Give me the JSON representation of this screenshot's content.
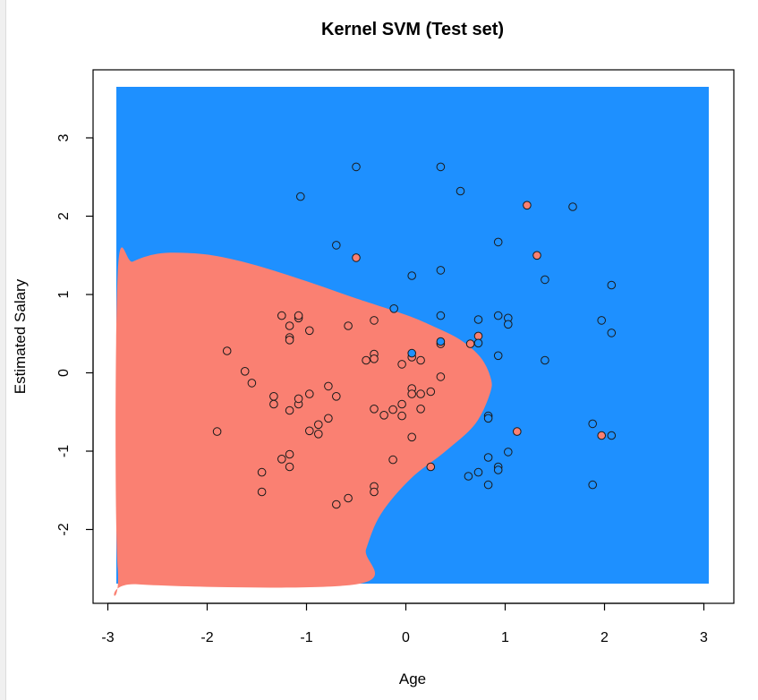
{
  "chart_data": {
    "type": "scatter",
    "title": "Kernel SVM (Test set)",
    "xlabel": "Age",
    "ylabel": "Estimated Salary",
    "xlim": [
      -3,
      3
    ],
    "ylim": [
      -3,
      3.7
    ],
    "x_ticks": [
      "-3",
      "-2",
      "-1",
      "0",
      "1",
      "2",
      "3"
    ],
    "y_ticks": [
      "-2",
      "-1",
      "0",
      "1",
      "2",
      "3"
    ],
    "grid": false,
    "region_colors": {
      "class_0": "#fa8072",
      "class_1": "#1e90ff"
    },
    "decision_region_class_0_boundary": [
      [
        -2.9,
        1.28
      ],
      [
        -2.75,
        1.42
      ],
      [
        -2.5,
        1.52
      ],
      [
        -2.2,
        1.53
      ],
      [
        -1.9,
        1.49
      ],
      [
        -1.5,
        1.37
      ],
      [
        -1.0,
        1.17
      ],
      [
        -0.5,
        0.95
      ],
      [
        0.0,
        0.74
      ],
      [
        0.3,
        0.58
      ],
      [
        0.55,
        0.42
      ],
      [
        0.75,
        0.2
      ],
      [
        0.85,
        -0.05
      ],
      [
        0.85,
        -0.25
      ],
      [
        0.7,
        -0.65
      ],
      [
        0.4,
        -1.0
      ],
      [
        0.05,
        -1.35
      ],
      [
        -0.25,
        -1.8
      ],
      [
        -0.4,
        -2.25
      ],
      [
        -0.5,
        -2.7
      ],
      [
        -2.7,
        -2.7
      ],
      [
        -2.9,
        -2.5
      ]
    ],
    "series": [
      {
        "class": 0,
        "point_color": "#fa8072",
        "points": [
          [
            -1.9,
            -0.75
          ],
          [
            -1.8,
            0.28
          ],
          [
            -1.62,
            0.02
          ],
          [
            -1.55,
            -0.13
          ],
          [
            -1.45,
            -1.27
          ],
          [
            -1.45,
            -1.52
          ],
          [
            -1.33,
            -0.3
          ],
          [
            -1.33,
            -0.4
          ],
          [
            -1.25,
            0.73
          ],
          [
            -1.25,
            -1.1
          ],
          [
            -1.17,
            0.6
          ],
          [
            -1.17,
            0.45
          ],
          [
            -1.17,
            0.42
          ],
          [
            -1.17,
            -0.48
          ],
          [
            -1.17,
            -1.04
          ],
          [
            -1.17,
            -1.2
          ],
          [
            -1.08,
            0.7
          ],
          [
            -1.08,
            0.73
          ],
          [
            -1.08,
            -0.4
          ],
          [
            -1.08,
            -0.33
          ],
          [
            -0.97,
            0.54
          ],
          [
            -0.97,
            -0.27
          ],
          [
            -0.97,
            -0.74
          ],
          [
            -0.88,
            -0.78
          ],
          [
            -0.88,
            -0.66
          ],
          [
            -0.78,
            -0.17
          ],
          [
            -0.78,
            -0.58
          ],
          [
            -0.7,
            -0.3
          ],
          [
            -0.7,
            -1.68
          ],
          [
            -0.58,
            0.6
          ],
          [
            -0.58,
            -1.6
          ],
          [
            -0.4,
            0.16
          ],
          [
            -0.32,
            0.67
          ],
          [
            -0.32,
            0.24
          ],
          [
            -0.32,
            0.18
          ],
          [
            -0.32,
            -0.46
          ],
          [
            -0.32,
            -1.45
          ],
          [
            -0.32,
            -1.52
          ],
          [
            -0.22,
            -0.54
          ],
          [
            -0.13,
            -0.47
          ],
          [
            -0.13,
            -1.11
          ],
          [
            -0.04,
            0.11
          ],
          [
            -0.04,
            -0.4
          ],
          [
            -0.04,
            -0.55
          ],
          [
            0.06,
            0.2
          ],
          [
            0.06,
            -0.2
          ],
          [
            0.06,
            -0.27
          ],
          [
            0.06,
            -0.82
          ],
          [
            0.15,
            0.16
          ],
          [
            0.15,
            -0.27
          ],
          [
            0.15,
            -0.46
          ],
          [
            0.25,
            -0.24
          ],
          [
            0.25,
            -1.2
          ],
          [
            0.35,
            0.37
          ],
          [
            0.35,
            -0.05
          ],
          [
            0.65,
            0.37
          ],
          [
            0.73,
            0.47
          ],
          [
            -0.5,
            1.47
          ],
          [
            1.12,
            -0.75
          ],
          [
            1.22,
            2.14
          ],
          [
            1.32,
            1.5
          ],
          [
            1.97,
            -0.8
          ]
        ]
      },
      {
        "class": 1,
        "point_color": "#1e90ff",
        "points": [
          [
            -1.06,
            2.25
          ],
          [
            -0.7,
            1.63
          ],
          [
            -0.5,
            2.63
          ],
          [
            -0.12,
            0.82
          ],
          [
            0.06,
            0.25
          ],
          [
            0.06,
            1.24
          ],
          [
            0.35,
            2.63
          ],
          [
            0.35,
            1.31
          ],
          [
            0.35,
            0.73
          ],
          [
            0.35,
            0.4
          ],
          [
            0.55,
            2.32
          ],
          [
            0.63,
            -1.32
          ],
          [
            0.73,
            0.68
          ],
          [
            0.73,
            0.38
          ],
          [
            0.73,
            -1.27
          ],
          [
            0.83,
            -0.55
          ],
          [
            0.83,
            -0.58
          ],
          [
            0.83,
            -1.08
          ],
          [
            0.83,
            -1.43
          ],
          [
            0.93,
            1.67
          ],
          [
            0.93,
            0.73
          ],
          [
            0.93,
            0.22
          ],
          [
            0.93,
            -1.2
          ],
          [
            0.93,
            -1.24
          ],
          [
            1.03,
            0.7
          ],
          [
            1.03,
            0.62
          ],
          [
            1.03,
            -1.01
          ],
          [
            1.4,
            1.19
          ],
          [
            1.4,
            0.16
          ],
          [
            1.68,
            2.12
          ],
          [
            1.88,
            -0.65
          ],
          [
            1.88,
            -1.43
          ],
          [
            1.97,
            0.67
          ],
          [
            2.07,
            1.12
          ],
          [
            2.07,
            0.51
          ],
          [
            2.07,
            -0.8
          ]
        ]
      }
    ]
  }
}
